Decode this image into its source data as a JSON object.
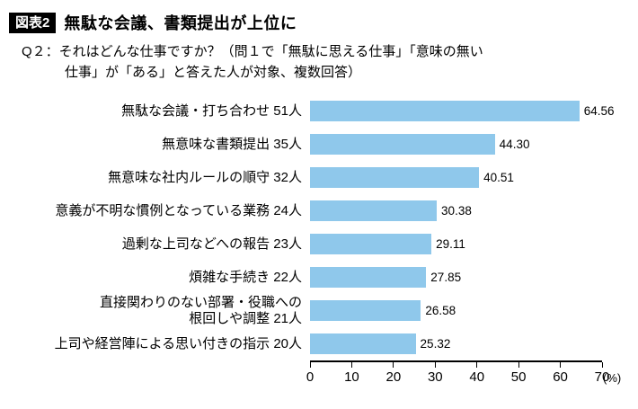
{
  "header": {
    "badge": "図表2",
    "title": "無駄な会議、書類提出が上位に",
    "subtitle": "Q２：それはどんな仕事ですか？（問１で「無駄に思える仕事」「意味の無い\n仕事」が「ある」と答えた人が対象、複数回答）"
  },
  "colors": {
    "bar": "#8fc8eb",
    "badge_bg": "#000000",
    "badge_text": "#ffffff",
    "axis": "#000000"
  },
  "chart_data": {
    "type": "bar",
    "orientation": "horizontal",
    "title": "無駄な会議、書類提出が上位に",
    "categories": [
      "無駄な会議・打ち合わせ 51人",
      "無意味な書類提出 35人",
      "無意味な社内ルールの順守 32人",
      "意義が不明な慣例となっている業務 24人",
      "過剰な上司などへの報告 23人",
      "煩雑な手続き 22人",
      "直接関わりのない部署・役職への\n根回しや調整 21人",
      "上司や経営陣による思い付きの指示 20人"
    ],
    "values": [
      64.56,
      44.3,
      40.51,
      30.38,
      29.11,
      27.85,
      26.58,
      25.32
    ],
    "value_labels": [
      "64.56",
      "44.30",
      "40.51",
      "30.38",
      "29.11",
      "27.85",
      "26.58",
      "25.32"
    ],
    "counts": [
      51,
      35,
      32,
      24,
      23,
      22,
      21,
      20
    ],
    "xlabel": "",
    "ylabel": "",
    "xlim": [
      0,
      70
    ],
    "xticks": [
      0,
      10,
      20,
      30,
      40,
      50,
      60,
      70
    ],
    "x_unit": "(%)",
    "grid": false,
    "legend": false
  }
}
